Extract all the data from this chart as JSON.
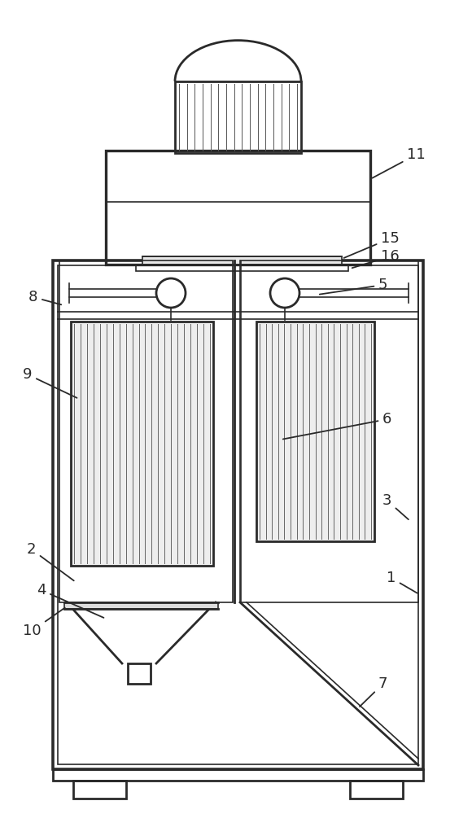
{
  "bg_color": "#ffffff",
  "lc": "#2a2a2a",
  "lw_main": 2.0,
  "lw_thin": 1.2,
  "lw_hair": 0.7,
  "fs": 13,
  "figsize": [
    5.8,
    10.0
  ],
  "dpi": 100
}
